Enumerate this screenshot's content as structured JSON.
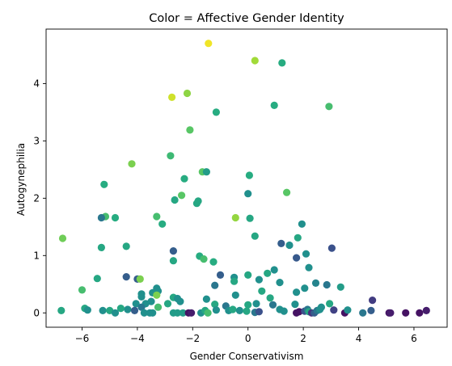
{
  "chart_data": {
    "type": "scatter",
    "title": "Color = Affective Gender Identity",
    "xlabel": "Gender Conservativism",
    "ylabel": "Autogynephilia",
    "xlim": [
      -7.3,
      7.2
    ],
    "ylim": [
      -0.25,
      4.95
    ],
    "xticks": [
      -6,
      -4,
      -2,
      0,
      2,
      4,
      6
    ],
    "yticks": [
      0,
      1,
      2,
      3,
      4
    ],
    "grid": false,
    "colormap": "viridis",
    "color_range": [
      0,
      1
    ],
    "points": [
      {
        "x": -1.43,
        "y": 4.7,
        "c": 0.98
      },
      {
        "x": 0.25,
        "y": 4.4,
        "c": 0.86
      },
      {
        "x": 1.23,
        "y": 4.36,
        "c": 0.62
      },
      {
        "x": -2.75,
        "y": 3.76,
        "c": 0.93
      },
      {
        "x": -2.2,
        "y": 3.83,
        "c": 0.83
      },
      {
        "x": -1.15,
        "y": 3.5,
        "c": 0.62
      },
      {
        "x": 0.95,
        "y": 3.62,
        "c": 0.62
      },
      {
        "x": 2.93,
        "y": 3.6,
        "c": 0.7
      },
      {
        "x": -2.1,
        "y": 3.19,
        "c": 0.74
      },
      {
        "x": -2.8,
        "y": 2.74,
        "c": 0.68
      },
      {
        "x": -4.2,
        "y": 2.6,
        "c": 0.8
      },
      {
        "x": -1.65,
        "y": 2.46,
        "c": 0.74
      },
      {
        "x": -1.5,
        "y": 2.46,
        "c": 0.55
      },
      {
        "x": 0.05,
        "y": 2.4,
        "c": 0.62
      },
      {
        "x": -2.3,
        "y": 2.34,
        "c": 0.62
      },
      {
        "x": -5.2,
        "y": 2.24,
        "c": 0.62
      },
      {
        "x": 1.4,
        "y": 2.1,
        "c": 0.74
      },
      {
        "x": 0.0,
        "y": 2.08,
        "c": 0.5
      },
      {
        "x": -2.4,
        "y": 2.05,
        "c": 0.74
      },
      {
        "x": -2.65,
        "y": 1.97,
        "c": 0.6
      },
      {
        "x": -1.8,
        "y": 1.95,
        "c": 0.6
      },
      {
        "x": -1.85,
        "y": 1.91,
        "c": 0.6
      },
      {
        "x": -5.15,
        "y": 1.68,
        "c": 0.7
      },
      {
        "x": -5.3,
        "y": 1.66,
        "c": 0.4
      },
      {
        "x": -4.8,
        "y": 1.66,
        "c": 0.62
      },
      {
        "x": -3.3,
        "y": 1.68,
        "c": 0.7
      },
      {
        "x": -0.45,
        "y": 1.66,
        "c": 0.84
      },
      {
        "x": 0.07,
        "y": 1.65,
        "c": 0.6
      },
      {
        "x": -3.1,
        "y": 1.55,
        "c": 0.62
      },
      {
        "x": 1.95,
        "y": 1.55,
        "c": 0.5
      },
      {
        "x": 0.25,
        "y": 1.34,
        "c": 0.6
      },
      {
        "x": -6.7,
        "y": 1.3,
        "c": 0.78
      },
      {
        "x": 1.8,
        "y": 1.31,
        "c": 0.6
      },
      {
        "x": 1.2,
        "y": 1.21,
        "c": 0.3
      },
      {
        "x": 1.5,
        "y": 1.18,
        "c": 0.5
      },
      {
        "x": -4.4,
        "y": 1.16,
        "c": 0.6
      },
      {
        "x": -5.3,
        "y": 1.14,
        "c": 0.6
      },
      {
        "x": 3.03,
        "y": 1.13,
        "c": 0.25
      },
      {
        "x": -2.7,
        "y": 1.08,
        "c": 0.3
      },
      {
        "x": 2.1,
        "y": 1.03,
        "c": 0.5
      },
      {
        "x": -1.75,
        "y": 0.99,
        "c": 0.62
      },
      {
        "x": -1.6,
        "y": 0.94,
        "c": 0.7
      },
      {
        "x": -1.25,
        "y": 0.89,
        "c": 0.62
      },
      {
        "x": -2.7,
        "y": 0.91,
        "c": 0.6
      },
      {
        "x": 1.75,
        "y": 0.96,
        "c": 0.28
      },
      {
        "x": 2.2,
        "y": 0.79,
        "c": 0.5
      },
      {
        "x": 0.95,
        "y": 0.75,
        "c": 0.5
      },
      {
        "x": 0.7,
        "y": 0.69,
        "c": 0.6
      },
      {
        "x": 0.0,
        "y": 0.66,
        "c": 0.6
      },
      {
        "x": -1.0,
        "y": 0.66,
        "c": 0.3
      },
      {
        "x": -4.4,
        "y": 0.63,
        "c": 0.3
      },
      {
        "x": -4.0,
        "y": 0.59,
        "c": 0.3
      },
      {
        "x": -3.9,
        "y": 0.59,
        "c": 0.8
      },
      {
        "x": -5.45,
        "y": 0.6,
        "c": 0.6
      },
      {
        "x": -0.5,
        "y": 0.62,
        "c": 0.5
      },
      {
        "x": 0.4,
        "y": 0.58,
        "c": 0.5
      },
      {
        "x": -0.5,
        "y": 0.55,
        "c": 0.6
      },
      {
        "x": 1.15,
        "y": 0.53,
        "c": 0.5
      },
      {
        "x": 2.45,
        "y": 0.52,
        "c": 0.45
      },
      {
        "x": 2.85,
        "y": 0.49,
        "c": 0.4
      },
      {
        "x": -1.2,
        "y": 0.48,
        "c": 0.4
      },
      {
        "x": -3.3,
        "y": 0.43,
        "c": 0.5
      },
      {
        "x": 2.05,
        "y": 0.43,
        "c": 0.5
      },
      {
        "x": 3.35,
        "y": 0.45,
        "c": 0.55
      },
      {
        "x": -6.0,
        "y": 0.4,
        "c": 0.7
      },
      {
        "x": 0.5,
        "y": 0.38,
        "c": 0.6
      },
      {
        "x": 1.75,
        "y": 0.36,
        "c": 0.5
      },
      {
        "x": -3.45,
        "y": 0.35,
        "c": 0.5
      },
      {
        "x": -3.25,
        "y": 0.38,
        "c": 0.5
      },
      {
        "x": -3.3,
        "y": 0.31,
        "c": 0.8
      },
      {
        "x": -3.85,
        "y": 0.33,
        "c": 0.5
      },
      {
        "x": -3.85,
        "y": 0.28,
        "c": 0.5
      },
      {
        "x": -0.45,
        "y": 0.31,
        "c": 0.5
      },
      {
        "x": -2.7,
        "y": 0.27,
        "c": 0.6
      },
      {
        "x": -2.55,
        "y": 0.25,
        "c": 0.5
      },
      {
        "x": -1.5,
        "y": 0.24,
        "c": 0.5
      },
      {
        "x": -2.45,
        "y": 0.2,
        "c": 0.5
      },
      {
        "x": 0.8,
        "y": 0.26,
        "c": 0.6
      },
      {
        "x": 4.5,
        "y": 0.22,
        "c": 0.18
      },
      {
        "x": -4.05,
        "y": 0.16,
        "c": 0.5
      },
      {
        "x": -3.7,
        "y": 0.16,
        "c": 0.5
      },
      {
        "x": -3.5,
        "y": 0.2,
        "c": 0.5
      },
      {
        "x": -2.9,
        "y": 0.16,
        "c": 0.6
      },
      {
        "x": -1.2,
        "y": 0.15,
        "c": 0.6
      },
      {
        "x": 0.0,
        "y": 0.14,
        "c": 0.6
      },
      {
        "x": 0.3,
        "y": 0.16,
        "c": 0.5
      },
      {
        "x": 1.7,
        "y": 0.15,
        "c": 0.5
      },
      {
        "x": 2.95,
        "y": 0.16,
        "c": 0.6
      },
      {
        "x": 2.65,
        "y": 0.1,
        "c": 0.5
      },
      {
        "x": 0.9,
        "y": 0.14,
        "c": 0.4
      },
      {
        "x": -0.8,
        "y": 0.12,
        "c": 0.4
      },
      {
        "x": -3.85,
        "y": 0.1,
        "c": 0.4
      },
      {
        "x": -3.25,
        "y": 0.1,
        "c": 0.7
      },
      {
        "x": -4.35,
        "y": 0.06,
        "c": 0.5
      },
      {
        "x": -4.1,
        "y": 0.04,
        "c": 0.3
      },
      {
        "x": -4.6,
        "y": 0.08,
        "c": 0.6
      },
      {
        "x": -5.9,
        "y": 0.08,
        "c": 0.6
      },
      {
        "x": -5.8,
        "y": 0.05,
        "c": 0.5
      },
      {
        "x": -5.25,
        "y": 0.04,
        "c": 0.5
      },
      {
        "x": -5.0,
        "y": 0.04,
        "c": 0.6
      },
      {
        "x": -6.75,
        "y": 0.04,
        "c": 0.6
      },
      {
        "x": -4.8,
        "y": 0.0,
        "c": 0.5
      },
      {
        "x": -3.75,
        "y": 0.0,
        "c": 0.5
      },
      {
        "x": -3.55,
        "y": 0.0,
        "c": 0.5
      },
      {
        "x": -3.45,
        "y": 0.0,
        "c": 0.5
      },
      {
        "x": -2.7,
        "y": 0.0,
        "c": 0.55
      },
      {
        "x": -2.55,
        "y": 0.0,
        "c": 0.55
      },
      {
        "x": -2.35,
        "y": 0.0,
        "c": 0.55
      },
      {
        "x": -2.15,
        "y": 0.0,
        "c": 0.05
      },
      {
        "x": -2.05,
        "y": 0.0,
        "c": 0.08
      },
      {
        "x": -1.7,
        "y": 0.0,
        "c": 0.5
      },
      {
        "x": -1.55,
        "y": 0.04,
        "c": 0.6
      },
      {
        "x": -1.45,
        "y": 0.0,
        "c": 0.7
      },
      {
        "x": -1.15,
        "y": 0.05,
        "c": 0.5
      },
      {
        "x": -0.7,
        "y": 0.04,
        "c": 0.5
      },
      {
        "x": -0.55,
        "y": 0.06,
        "c": 0.6
      },
      {
        "x": -0.3,
        "y": 0.04,
        "c": 0.5
      },
      {
        "x": -0.05,
        "y": 0.03,
        "c": 0.6
      },
      {
        "x": 0.25,
        "y": 0.01,
        "c": 0.4
      },
      {
        "x": 0.4,
        "y": 0.02,
        "c": 0.25
      },
      {
        "x": 1.15,
        "y": 0.06,
        "c": 0.5
      },
      {
        "x": 1.3,
        "y": 0.03,
        "c": 0.5
      },
      {
        "x": 1.75,
        "y": 0.0,
        "c": 0.05
      },
      {
        "x": 1.85,
        "y": 0.02,
        "c": 0.05
      },
      {
        "x": 2.05,
        "y": 0.03,
        "c": 0.25
      },
      {
        "x": 2.15,
        "y": 0.06,
        "c": 0.4
      },
      {
        "x": 2.2,
        "y": 0.02,
        "c": 0.6
      },
      {
        "x": 2.3,
        "y": 0.0,
        "c": 0.15
      },
      {
        "x": 2.4,
        "y": 0.0,
        "c": 0.3
      },
      {
        "x": 2.5,
        "y": 0.04,
        "c": 0.4
      },
      {
        "x": 2.6,
        "y": 0.06,
        "c": 0.5
      },
      {
        "x": 3.1,
        "y": 0.05,
        "c": 0.2
      },
      {
        "x": 3.5,
        "y": 0.0,
        "c": 0.05
      },
      {
        "x": 3.6,
        "y": 0.05,
        "c": 0.5
      },
      {
        "x": 4.15,
        "y": 0.0,
        "c": 0.4
      },
      {
        "x": 4.45,
        "y": 0.04,
        "c": 0.3
      },
      {
        "x": 5.1,
        "y": 0.0,
        "c": 0.05
      },
      {
        "x": 5.15,
        "y": 0.0,
        "c": 0.08
      },
      {
        "x": 5.7,
        "y": 0.0,
        "c": 0.05
      },
      {
        "x": 6.2,
        "y": 0.0,
        "c": 0.05
      },
      {
        "x": 6.45,
        "y": 0.04,
        "c": 0.08
      }
    ]
  }
}
